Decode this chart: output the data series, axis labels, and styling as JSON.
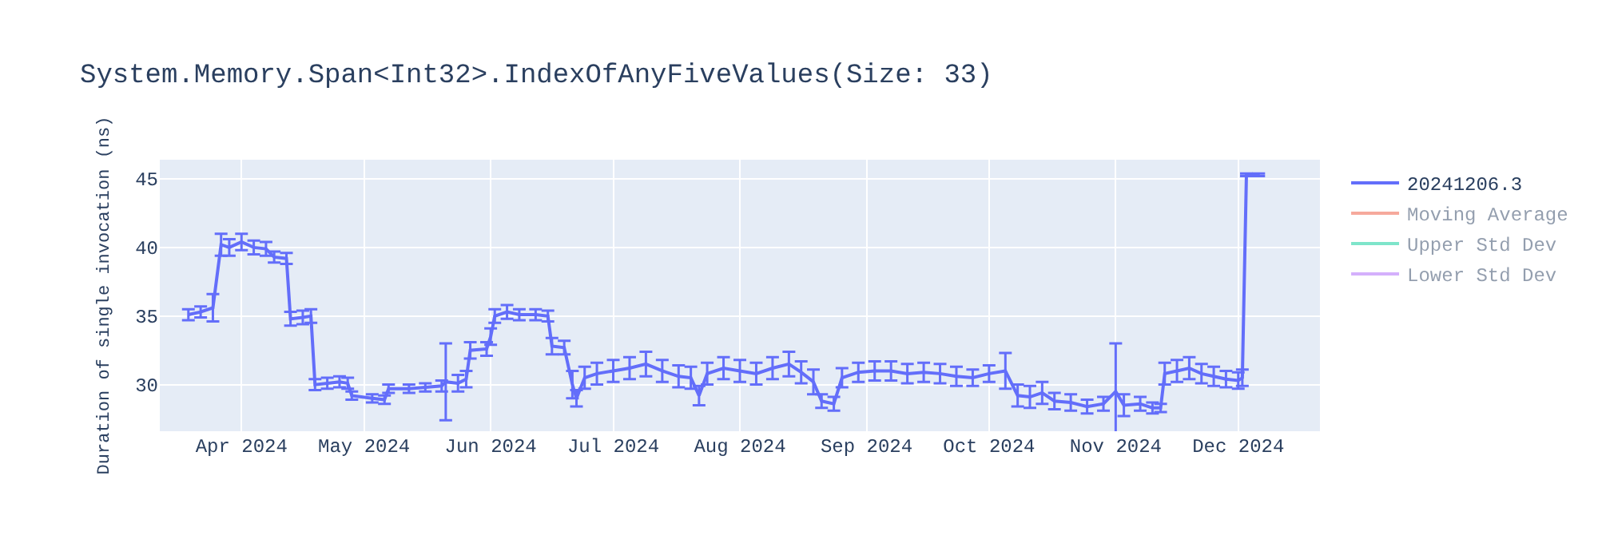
{
  "chart_data": {
    "type": "line",
    "title": "System.Memory.Span<Int32>.IndexOfAnyFiveValues(Size: 33)",
    "ylabel": "Duration of single invocation (ns)",
    "x": [
      "2024-03-19",
      "2024-03-22",
      "2024-03-25",
      "2024-03-27",
      "2024-03-29",
      "2024-04-01",
      "2024-04-04",
      "2024-04-07",
      "2024-04-09",
      "2024-04-12",
      "2024-04-13",
      "2024-04-16",
      "2024-04-18",
      "2024-04-19",
      "2024-04-22",
      "2024-04-25",
      "2024-04-27",
      "2024-04-28",
      "2024-05-03",
      "2024-05-06",
      "2024-05-07",
      "2024-05-12",
      "2024-05-16",
      "2024-05-20",
      "2024-05-21",
      "2024-05-24",
      "2024-05-26",
      "2024-05-27",
      "2024-05-31",
      "2024-06-01",
      "2024-06-02",
      "2024-06-05",
      "2024-06-08",
      "2024-06-12",
      "2024-06-15",
      "2024-06-16",
      "2024-06-19",
      "2024-06-21",
      "2024-06-22",
      "2024-06-24",
      "2024-06-27",
      "2024-07-01",
      "2024-07-05",
      "2024-07-09",
      "2024-07-13",
      "2024-07-17",
      "2024-07-20",
      "2024-07-22",
      "2024-07-24",
      "2024-07-28",
      "2024-08-01",
      "2024-08-05",
      "2024-08-09",
      "2024-08-13",
      "2024-08-16",
      "2024-08-19",
      "2024-08-21",
      "2024-08-24",
      "2024-08-26",
      "2024-08-30",
      "2024-09-03",
      "2024-09-07",
      "2024-09-11",
      "2024-09-15",
      "2024-09-19",
      "2024-09-23",
      "2024-09-27",
      "2024-10-01",
      "2024-10-05",
      "2024-10-08",
      "2024-10-11",
      "2024-10-14",
      "2024-10-17",
      "2024-10-21",
      "2024-10-25",
      "2024-10-29",
      "2024-11-01",
      "2024-11-03",
      "2024-11-07",
      "2024-11-10",
      "2024-11-12",
      "2024-11-13",
      "2024-11-16",
      "2024-11-19",
      "2024-11-22",
      "2024-11-25",
      "2024-11-28",
      "2024-12-01",
      "2024-12-02",
      "2024-12-03",
      "2024-12-06"
    ],
    "series": [
      {
        "name": "20241206.3",
        "color": "#636efa",
        "values": [
          35.1,
          35.3,
          35.6,
          40.2,
          40.0,
          40.4,
          40.0,
          39.9,
          39.3,
          39.2,
          34.8,
          34.9,
          35.0,
          30.0,
          30.1,
          30.2,
          30.1,
          29.2,
          29.0,
          28.9,
          29.7,
          29.7,
          29.8,
          29.9,
          30.2,
          30.1,
          30.4,
          32.5,
          32.6,
          33.5,
          35.0,
          35.3,
          35.1,
          35.1,
          35.0,
          32.8,
          32.7,
          30.0,
          29.0,
          30.5,
          30.8,
          31.0,
          31.2,
          31.5,
          31.0,
          30.6,
          30.5,
          29.2,
          30.8,
          31.2,
          31.0,
          30.8,
          31.2,
          31.5,
          30.9,
          30.2,
          28.8,
          28.6,
          30.5,
          30.9,
          31.0,
          31.0,
          30.8,
          30.9,
          30.8,
          30.6,
          30.5,
          30.8,
          31.0,
          29.2,
          29.1,
          29.4,
          28.8,
          28.7,
          28.4,
          28.6,
          29.5,
          28.5,
          28.6,
          28.3,
          28.3,
          30.8,
          31.0,
          31.2,
          30.8,
          30.6,
          30.4,
          30.3,
          30.5,
          45.3,
          45.3
        ],
        "errors": [
          0.4,
          0.4,
          1.0,
          0.8,
          0.6,
          0.6,
          0.5,
          0.5,
          0.4,
          0.4,
          0.5,
          0.5,
          0.5,
          0.4,
          0.4,
          0.4,
          0.4,
          0.3,
          0.3,
          0.3,
          0.3,
          0.3,
          0.3,
          0.4,
          2.8,
          0.6,
          0.6,
          0.6,
          0.5,
          0.6,
          0.5,
          0.5,
          0.4,
          0.4,
          0.4,
          0.6,
          0.5,
          1.0,
          0.6,
          0.8,
          0.8,
          0.8,
          0.8,
          0.9,
          0.8,
          0.8,
          0.8,
          0.7,
          0.8,
          0.8,
          0.8,
          0.8,
          0.8,
          0.9,
          0.8,
          0.9,
          0.5,
          0.5,
          0.7,
          0.7,
          0.7,
          0.7,
          0.7,
          0.7,
          0.7,
          0.7,
          0.6,
          0.6,
          1.3,
          0.8,
          0.8,
          0.8,
          0.6,
          0.6,
          0.5,
          0.5,
          3.5,
          0.8,
          0.5,
          0.4,
          0.3,
          0.8,
          0.8,
          0.8,
          0.7,
          0.7,
          0.6,
          0.6,
          0.6,
          0.1,
          0.1
        ]
      },
      {
        "name": "Moving Average",
        "color": "#ef553b",
        "values": [
          null,
          null,
          null,
          null,
          null,
          null,
          null,
          null,
          null,
          null,
          null,
          null,
          null,
          null,
          null,
          null,
          null,
          null,
          null,
          null,
          null,
          null,
          null,
          null,
          null,
          null,
          null,
          null,
          null,
          null,
          null,
          null,
          null,
          null,
          null,
          null,
          null,
          null,
          null,
          null,
          null,
          null,
          null,
          null,
          null,
          null,
          null,
          null,
          null,
          null,
          null,
          null,
          null,
          null,
          null,
          null,
          null,
          null,
          null,
          null,
          null,
          null,
          null,
          null,
          null,
          null,
          null,
          null,
          null,
          null,
          null,
          null,
          null,
          null,
          null,
          null,
          null,
          null,
          null,
          null,
          null,
          null,
          null,
          null,
          null,
          null,
          null,
          null,
          null,
          null,
          null
        ]
      },
      {
        "name": "Upper Std Dev",
        "color": "#00cc96",
        "values": [
          null,
          null,
          null,
          null,
          null,
          null,
          null,
          null,
          null,
          null,
          null,
          null,
          null,
          null,
          null,
          null,
          null,
          null,
          null,
          null,
          null,
          null,
          null,
          null,
          null,
          null,
          null,
          null,
          null,
          null,
          null,
          null,
          null,
          null,
          null,
          null,
          null,
          null,
          null,
          null,
          null,
          null,
          null,
          null,
          null,
          null,
          null,
          null,
          null,
          null,
          null,
          null,
          null,
          null,
          null,
          null,
          null,
          null,
          null,
          null,
          null,
          null,
          null,
          null,
          null,
          null,
          null,
          null,
          null,
          null,
          null,
          null,
          null,
          null,
          null,
          null,
          null,
          null,
          null,
          null,
          null,
          null,
          null,
          null,
          null,
          null,
          null,
          null,
          null,
          null,
          null
        ]
      },
      {
        "name": "Lower Std Dev",
        "color": "#ab63fa",
        "values": [
          null,
          null,
          null,
          null,
          null,
          null,
          null,
          null,
          null,
          null,
          null,
          null,
          null,
          null,
          null,
          null,
          null,
          null,
          null,
          null,
          null,
          null,
          null,
          null,
          null,
          null,
          null,
          null,
          null,
          null,
          null,
          null,
          null,
          null,
          null,
          null,
          null,
          null,
          null,
          null,
          null,
          null,
          null,
          null,
          null,
          null,
          null,
          null,
          null,
          null,
          null,
          null,
          null,
          null,
          null,
          null,
          null,
          null,
          null,
          null,
          null,
          null,
          null,
          null,
          null,
          null,
          null,
          null,
          null,
          null,
          null,
          null,
          null,
          null,
          null,
          null,
          null,
          null,
          null,
          null,
          null,
          null,
          null,
          null,
          null,
          null,
          null,
          null,
          null,
          null,
          null
        ]
      }
    ],
    "xlim": [
      "2024-03-12",
      "2024-12-21"
    ],
    "xticks": [
      {
        "value": "2024-04-01",
        "label": "Apr 2024"
      },
      {
        "value": "2024-05-01",
        "label": "May 2024"
      },
      {
        "value": "2024-06-01",
        "label": "Jun 2024"
      },
      {
        "value": "2024-07-01",
        "label": "Jul 2024"
      },
      {
        "value": "2024-08-01",
        "label": "Aug 2024"
      },
      {
        "value": "2024-09-01",
        "label": "Sep 2024"
      },
      {
        "value": "2024-10-01",
        "label": "Oct 2024"
      },
      {
        "value": "2024-11-01",
        "label": "Nov 2024"
      },
      {
        "value": "2024-12-01",
        "label": "Dec 2024"
      }
    ],
    "ylim": [
      26.6,
      46.4
    ],
    "yticks": [
      30,
      35,
      40,
      45
    ],
    "grid": true,
    "legend": "top right",
    "line_style": "solid"
  }
}
